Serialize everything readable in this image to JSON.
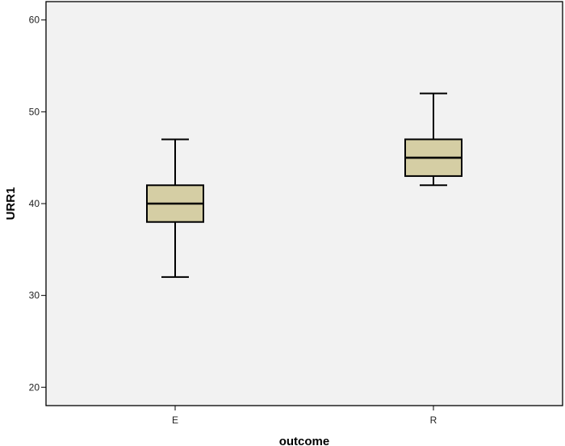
{
  "chart_data": {
    "type": "boxplot",
    "title": "",
    "xlabel": "outcome",
    "ylabel": "URR1",
    "ylim": [
      18,
      62
    ],
    "yticks": [
      20,
      30,
      40,
      50,
      60
    ],
    "categories": [
      "E",
      "R"
    ],
    "boxes": [
      {
        "category": "E",
        "min": 32,
        "q1": 38,
        "median": 40,
        "q3": 42,
        "max": 47
      },
      {
        "category": "R",
        "min": 42,
        "q1": 43,
        "median": 45,
        "q3": 47,
        "max": 52
      }
    ],
    "grid": false,
    "colors": {
      "plot_background": "#f2f2f2",
      "box_fill": "#d5cea4",
      "stroke": "#000000"
    }
  }
}
